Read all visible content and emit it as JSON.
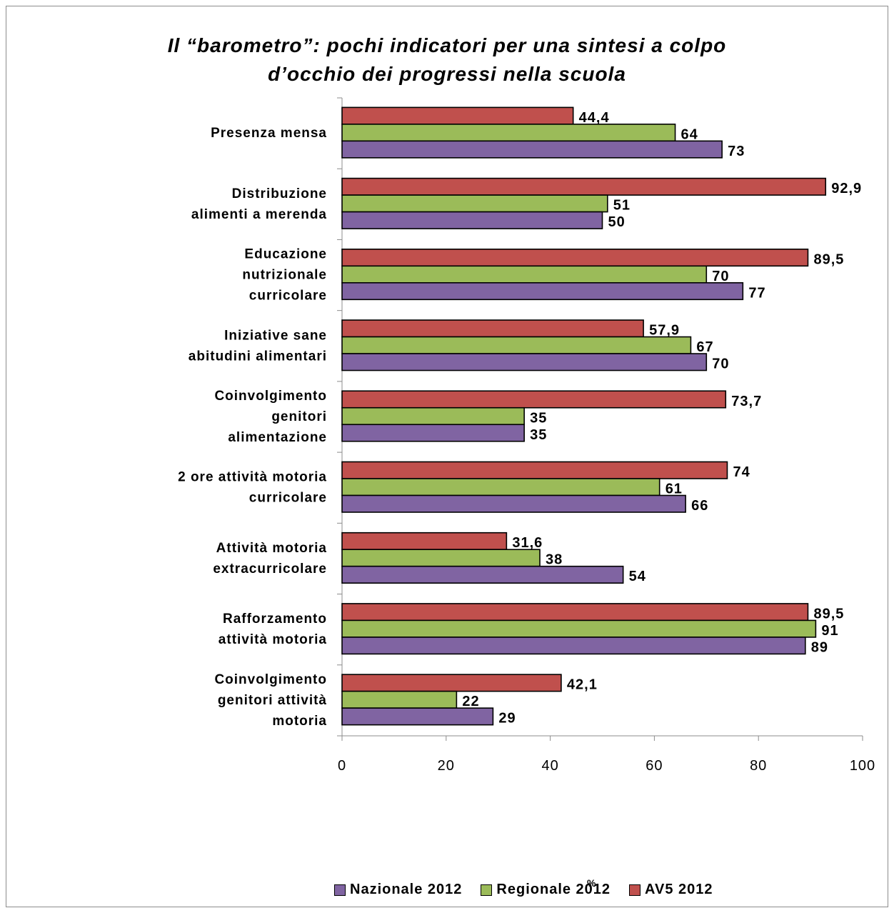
{
  "chart_data": {
    "type": "bar",
    "orientation": "horizontal",
    "title_lines": [
      "Il “barometro”: pochi indicatori per una sintesi a colpo",
      "d’occhio dei progressi nella scuola"
    ],
    "xlabel": "%",
    "categories": [
      [
        "Presenza mensa"
      ],
      [
        "Distribuzione",
        "alimenti a merenda"
      ],
      [
        "Educazione",
        "nutrizionale",
        "curricolare"
      ],
      [
        "Iniziative sane",
        "abitudini alimentari"
      ],
      [
        "Coinvolgimento",
        "genitori",
        "alimentazione"
      ],
      [
        "2 ore attività motoria",
        "curricolare"
      ],
      [
        "Attività motoria",
        "extracurricolare"
      ],
      [
        "Rafforzamento",
        "attività motoria"
      ],
      [
        "Coinvolgimento",
        "genitori attività",
        "motoria"
      ]
    ],
    "series": [
      {
        "name": "AV5 2012",
        "color": "#c0504d",
        "values": [
          44.4,
          92.9,
          89.5,
          57.9,
          73.7,
          74,
          31.6,
          89.5,
          42.1
        ],
        "labels": [
          "44,4",
          "92,9",
          "89,5",
          "57,9",
          "73,7",
          "74",
          "31,6",
          "89,5",
          "42,1"
        ]
      },
      {
        "name": "Regionale 2012",
        "color": "#9bbb59",
        "values": [
          64,
          51,
          70,
          67,
          35,
          61,
          38,
          91,
          22
        ],
        "labels": [
          "64",
          "51",
          "70",
          "67",
          "35",
          "61",
          "38",
          "91",
          "22"
        ]
      },
      {
        "name": "Nazionale 2012",
        "color": "#8064a2",
        "values": [
          73,
          50,
          77,
          70,
          35,
          66,
          54,
          89,
          29
        ],
        "labels": [
          "73",
          "50",
          "77",
          "70",
          "35",
          "66",
          "54",
          "89",
          "29"
        ]
      }
    ],
    "xlim": [
      0,
      100
    ],
    "xticks": [
      0,
      20,
      40,
      60,
      80,
      100
    ],
    "legend_order": [
      "Nazionale 2012",
      "Regionale 2012",
      "AV5 2012"
    ],
    "legend_position": "bottom",
    "grid": false
  }
}
